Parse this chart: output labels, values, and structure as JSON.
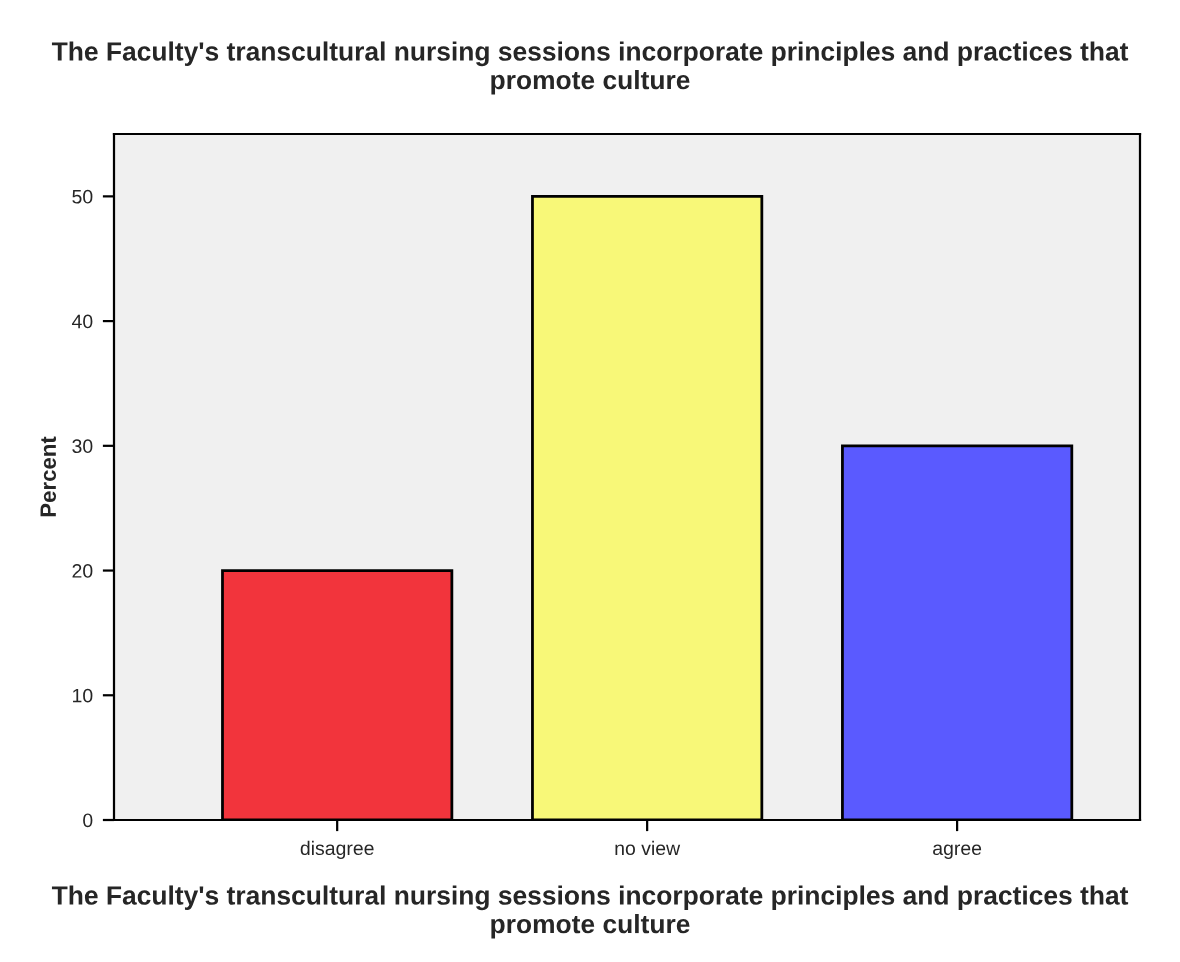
{
  "chart_data": {
    "type": "bar",
    "title": "The Faculty's transcultural nursing sessions incorporate principles and practices that promote culture",
    "xlabel": "The Faculty's transcultural nursing sessions incorporate principles and practices that promote culture",
    "ylabel": "Percent",
    "categories": [
      "disagree",
      "no view",
      "agree"
    ],
    "values": [
      20,
      50,
      30
    ],
    "colors": [
      "#f2343c",
      "#f8f878",
      "#5a5aff"
    ],
    "ylim": [
      0,
      55
    ],
    "yticks": [
      0,
      10,
      20,
      30,
      40,
      50
    ],
    "grid": false,
    "legend": false
  }
}
